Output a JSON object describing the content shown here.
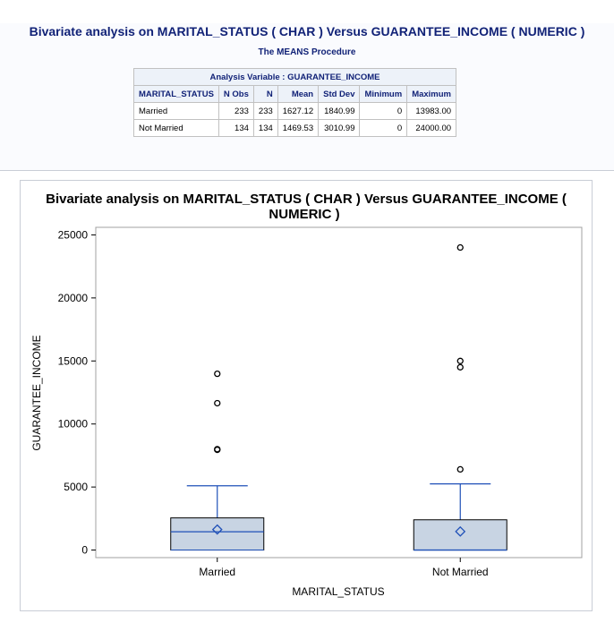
{
  "report": {
    "title": "Bivariate analysis on MARITAL_STATUS ( CHAR ) Versus GUARANTEE_INCOME ( NUMERIC )",
    "procedure": "The MEANS Procedure"
  },
  "table": {
    "caption": "Analysis Variable : GUARANTEE_INCOME",
    "headers": [
      "MARITAL_STATUS",
      "N Obs",
      "N",
      "Mean",
      "Std Dev",
      "Minimum",
      "Maximum"
    ],
    "rows": [
      [
        "Married",
        "233",
        "233",
        "1627.12",
        "1840.99",
        "0",
        "13983.00"
      ],
      [
        "Not Married",
        "134",
        "134",
        "1469.53",
        "3010.99",
        "0",
        "24000.00"
      ]
    ]
  },
  "chart_data": {
    "type": "box",
    "title_line1": "Bivariate analysis on MARITAL_STATUS ( CHAR ) Versus GUARANTEE_INCOME (",
    "title_line2": "NUMERIC )",
    "xlabel": "MARITAL_STATUS",
    "ylabel": "GUARANTEE_INCOME",
    "ylim": [
      -600,
      25600
    ],
    "yticks": [
      0,
      5000,
      10000,
      15000,
      20000,
      25000
    ],
    "categories": [
      "Married",
      "Not Married"
    ],
    "boxes": [
      {
        "category": "Married",
        "min": 0,
        "q1": 0,
        "median": 1450,
        "q3": 2550,
        "whisker_high": 5100,
        "mean": 1627.12,
        "outliers": [
          7950,
          8000,
          11650,
          13983
        ]
      },
      {
        "category": "Not Married",
        "min": 0,
        "q1": 0,
        "median": 0,
        "q3": 2400,
        "whisker_high": 5250,
        "mean": 1469.53,
        "outliers": [
          6400,
          14500,
          15000,
          24000
        ]
      }
    ],
    "colors": {
      "box_fill": "#c8d4e3",
      "box_edge": "#000000",
      "line": "#1f50b8",
      "outlier": "#000000"
    }
  }
}
